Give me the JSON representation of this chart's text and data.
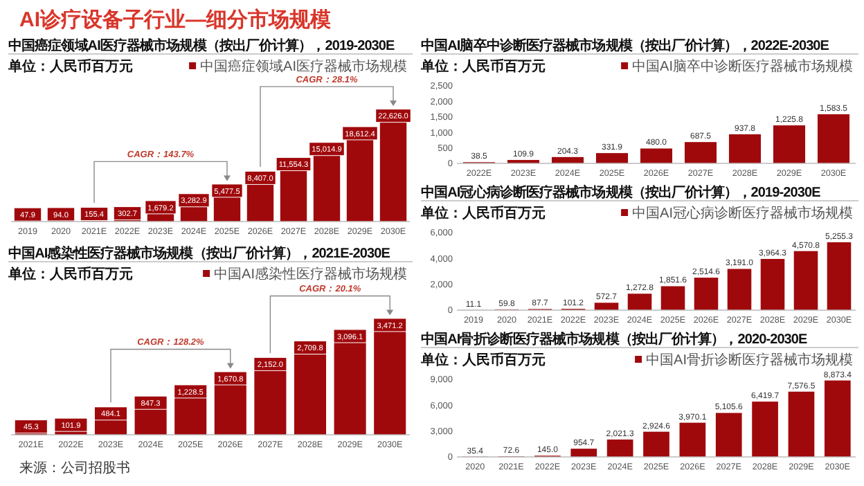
{
  "chart_data": [
    {
      "type": "other",
      "title": "AI诊疗设备子行业—细分市场规模",
      "annotations": [
        "来源：公司招股书"
      ]
    },
    {
      "type": "bar",
      "title": "中国癌症领域AI医疗器械市场规模（按出厂价计算），2019-2030E",
      "subtitle": "单位：人民币百万元",
      "legend": "top",
      "categories": [
        "2019",
        "2020",
        "2021E",
        "2022E",
        "2023E",
        "2024E",
        "2025E",
        "2026E",
        "2027E",
        "2028E",
        "2029E",
        "2030E"
      ],
      "series": [
        {
          "name": "中国癌症领域AI医疗器械市场规模",
          "color": "#a0090c",
          "values": [
            47.9,
            94.0,
            155.4,
            302.7,
            1679.2,
            3282.9,
            5477.5,
            8407.0,
            11554.3,
            15014.9,
            18612.4,
            22626.0
          ],
          "value_labels": [
            "47.9",
            "94.0",
            "155.4",
            "302.7",
            "1,679.2",
            "3,282.9",
            "5,477.5",
            "8,407.0",
            "11,554.3",
            "15,014.9",
            "18,612.4",
            "22,626.0"
          ]
        }
      ],
      "annotations": [
        "CAGR：143.7%",
        "CAGR：28.1%"
      ]
    },
    {
      "type": "bar",
      "title": "中国AI感染性医疗器械市场规模（按出厂价计算），2021E-2030E",
      "subtitle": "单位：人民币百万元",
      "legend": "top",
      "categories": [
        "2021E",
        "2022E",
        "2023E",
        "2024E",
        "2025E",
        "2026E",
        "2027E",
        "2028E",
        "2029E",
        "2030E"
      ],
      "series": [
        {
          "name": "中国AI感染性医疗器械市场规模",
          "color": "#a0090c",
          "values": [
            45.3,
            101.9,
            484.1,
            847.3,
            1228.5,
            1670.8,
            2152.0,
            2709.8,
            3096.1,
            3471.2
          ],
          "value_labels": [
            "45.3",
            "101.9",
            "484.1",
            "847.3",
            "1,228.5",
            "1,670.8",
            "2,152.0",
            "2,709.8",
            "3,096.1",
            "3,471.2"
          ]
        }
      ],
      "annotations": [
        "CAGR：128.2%",
        "CAGR：20.1%"
      ]
    },
    {
      "type": "bar",
      "title": "中国AI脑卒中诊断医疗器械市场规模（按出厂价计算），2022E-2030E",
      "subtitle": "单位：人民币百万元",
      "legend": "top",
      "categories": [
        "2022E",
        "2023E",
        "2024E",
        "2025E",
        "2026E",
        "2027E",
        "2028E",
        "2029E",
        "2030E"
      ],
      "series": [
        {
          "name": "中国AI脑卒中诊断医疗器械市场规模",
          "color": "#a0090c",
          "values": [
            38.5,
            109.9,
            204.3,
            331.9,
            480.0,
            687.5,
            937.8,
            1225.8,
            1583.5
          ],
          "value_labels": [
            "38.5",
            "109.9",
            "204.3",
            "331.9",
            "480.0",
            "687.5",
            "937.8",
            "1,225.8",
            "1,583.5"
          ]
        }
      ],
      "ylim": [
        0,
        2500
      ],
      "yticks": [
        {
          "value": 0,
          "label": "0"
        },
        {
          "value": 500,
          "label": "500"
        },
        {
          "value": 1000,
          "label": "1,000"
        },
        {
          "value": 1500,
          "label": "1,500"
        },
        {
          "value": 2000,
          "label": "2,000"
        },
        {
          "value": 2500,
          "label": "2,500"
        }
      ]
    },
    {
      "type": "bar",
      "title": "中国AI冠心病诊断医疗器械市场规模（按出厂价计算），2019-2030E",
      "subtitle": "单位：人民币百万元",
      "legend": "top",
      "categories": [
        "2019",
        "2020",
        "2021E",
        "2022E",
        "2023E",
        "2024E",
        "2025E",
        "2026E",
        "2027E",
        "2028E",
        "2029E",
        "2030E"
      ],
      "series": [
        {
          "name": "中国AI冠心病诊断医疗器械市场规模",
          "color": "#a0090c",
          "values": [
            11.1,
            59.8,
            87.7,
            101.2,
            572.7,
            1272.8,
            1851.6,
            2514.6,
            3191.0,
            3964.3,
            4570.8,
            5255.3
          ],
          "value_labels": [
            "11.1",
            "59.8",
            "87.7",
            "101.2",
            "572.7",
            "1,272.8",
            "1,851.6",
            "2,514.6",
            "3,191.0",
            "3,964.3",
            "4,570.8",
            "5,255.3"
          ]
        }
      ],
      "ylim": [
        0,
        6000
      ],
      "yticks": [
        {
          "value": 0,
          "label": "0"
        },
        {
          "value": 2000,
          "label": "2,000"
        },
        {
          "value": 4000,
          "label": "4,000"
        },
        {
          "value": 6000,
          "label": "6,000"
        }
      ]
    },
    {
      "type": "bar",
      "title": "中国AI骨折诊断医疗器械市场规模（按出厂价计算），2020-2030E",
      "subtitle": "单位：人民币百万元",
      "legend": "top",
      "categories": [
        "2020",
        "2021E",
        "2022E",
        "2023E",
        "2024E",
        "2025E",
        "2026E",
        "2027E",
        "2028E",
        "2029E",
        "2030E"
      ],
      "series": [
        {
          "name": "中国AI骨折诊断医疗器械市场规模",
          "color": "#a0090c",
          "values": [
            35.4,
            72.6,
            145.0,
            954.7,
            2021.3,
            2924.6,
            3970.1,
            5105.6,
            6419.7,
            7576.5,
            8873.4
          ],
          "value_labels": [
            "35.4",
            "72.6",
            "145.0",
            "954.7",
            "2,021.3",
            "2,924.6",
            "3,970.1",
            "5,105.6",
            "6,419.7",
            "7,576.5",
            "8,873.4"
          ]
        }
      ],
      "ylim": [
        0,
        9000
      ],
      "yticks": [
        {
          "value": 0,
          "label": "0"
        },
        {
          "value": 3000,
          "label": "3,000"
        },
        {
          "value": 6000,
          "label": "6,000"
        },
        {
          "value": 9000,
          "label": "9,000"
        }
      ]
    }
  ]
}
